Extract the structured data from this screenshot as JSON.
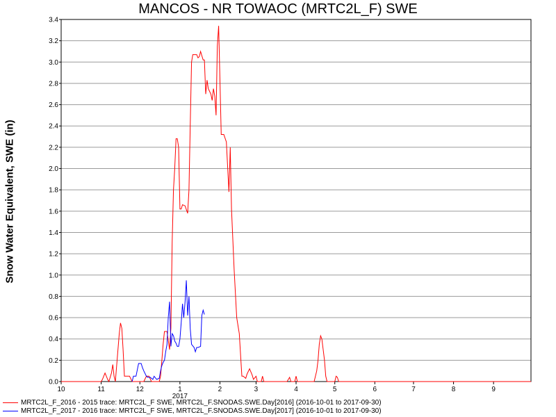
{
  "chart_data": {
    "type": "line",
    "title": "MANCOS - NR TOWAOC (MRTC2L_F) SWE",
    "ylabel": "Snow Water Equivalent, SWE (in)",
    "xlabel": "",
    "ylim": [
      0,
      3.4
    ],
    "xlim": [
      "2016-10-01",
      "2017-09-30"
    ],
    "y_ticks": [
      "0.0",
      "0.2",
      "0.4",
      "0.6",
      "0.8",
      "1.0",
      "1.2",
      "1.4",
      "1.6",
      "1.8",
      "2.0",
      "2.2",
      "2.4",
      "2.6",
      "2.8",
      "3.0",
      "3.2",
      "3.4"
    ],
    "x_ticks": [
      {
        "label": "10",
        "date": "2016-10-01"
      },
      {
        "label": "11",
        "date": "2016-11-01"
      },
      {
        "label": "12",
        "date": "2016-12-01"
      },
      {
        "label": "1",
        "date": "2017-01-01"
      },
      {
        "label": "2",
        "date": "2017-02-01"
      },
      {
        "label": "3",
        "date": "2017-03-01"
      },
      {
        "label": "4",
        "date": "2017-04-01"
      },
      {
        "label": "5",
        "date": "2017-05-01"
      },
      {
        "label": "6",
        "date": "2017-06-01"
      },
      {
        "label": "7",
        "date": "2017-07-01"
      },
      {
        "label": "8",
        "date": "2017-08-01"
      },
      {
        "label": "9",
        "date": "2017-09-01"
      }
    ],
    "year_label": "2017",
    "grid": true,
    "series": [
      {
        "name": "MRTC2L_F_2016 - 2015 trace: MRTC2L_F SWE, MRTC2L_F.SNODAS.SWE.Day[2016] (2016-10-01 to 2017-09-30)",
        "color": "#ff0000",
        "points": [
          [
            "2016-10-01",
            0
          ],
          [
            "2016-11-01",
            0
          ],
          [
            "2016-11-02",
            0.02
          ],
          [
            "2016-11-04",
            0.08
          ],
          [
            "2016-11-06",
            0.02
          ],
          [
            "2016-11-07",
            0
          ],
          [
            "2016-11-09",
            0.08
          ],
          [
            "2016-11-10",
            0.16
          ],
          [
            "2016-11-11",
            0.05
          ],
          [
            "2016-11-12",
            0
          ],
          [
            "2016-11-15",
            0.45
          ],
          [
            "2016-11-16",
            0.55
          ],
          [
            "2016-11-17",
            0.5
          ],
          [
            "2016-11-18",
            0.3
          ],
          [
            "2016-11-19",
            0.05
          ],
          [
            "2016-11-20",
            0.05
          ],
          [
            "2016-11-23",
            0.05
          ],
          [
            "2016-11-25",
            0
          ],
          [
            "2016-12-04",
            0
          ],
          [
            "2016-12-06",
            0.05
          ],
          [
            "2016-12-08",
            0.05
          ],
          [
            "2016-12-10",
            0
          ],
          [
            "2016-12-16",
            0
          ],
          [
            "2016-12-17",
            0.05
          ],
          [
            "2016-12-18",
            0.2
          ],
          [
            "2016-12-19",
            0.35
          ],
          [
            "2016-12-20",
            0.47
          ],
          [
            "2016-12-22",
            0.47
          ],
          [
            "2016-12-24",
            0.3
          ],
          [
            "2016-12-25",
            0.5
          ],
          [
            "2016-12-26",
            1.3
          ],
          [
            "2016-12-27",
            1.8
          ],
          [
            "2016-12-28",
            2.0
          ],
          [
            "2016-12-29",
            2.28
          ],
          [
            "2016-12-30",
            2.28
          ],
          [
            "2016-12-31",
            2.2
          ],
          [
            "2017-01-01",
            1.62
          ],
          [
            "2017-01-02",
            1.62
          ],
          [
            "2017-01-03",
            1.66
          ],
          [
            "2017-01-05",
            1.65
          ],
          [
            "2017-01-07",
            1.58
          ],
          [
            "2017-01-08",
            1.8
          ],
          [
            "2017-01-09",
            2.4
          ],
          [
            "2017-01-10",
            3.0
          ],
          [
            "2017-01-11",
            3.07
          ],
          [
            "2017-01-14",
            3.07
          ],
          [
            "2017-01-15",
            3.04
          ],
          [
            "2017-01-16",
            3.05
          ],
          [
            "2017-01-17",
            3.1
          ],
          [
            "2017-01-18",
            3.06
          ],
          [
            "2017-01-19",
            3.02
          ],
          [
            "2017-01-20",
            3.02
          ],
          [
            "2017-01-21",
            2.7
          ],
          [
            "2017-01-22",
            2.83
          ],
          [
            "2017-01-23",
            2.75
          ],
          [
            "2017-01-25",
            2.7
          ],
          [
            "2017-01-26",
            2.64
          ],
          [
            "2017-01-27",
            2.75
          ],
          [
            "2017-01-28",
            2.68
          ],
          [
            "2017-01-29",
            2.5
          ],
          [
            "2017-01-30",
            3.15
          ],
          [
            "2017-01-31",
            3.34
          ],
          [
            "2017-02-01",
            2.85
          ],
          [
            "2017-02-02",
            2.32
          ],
          [
            "2017-02-04",
            2.32
          ],
          [
            "2017-02-06",
            2.25
          ],
          [
            "2017-02-08",
            1.78
          ],
          [
            "2017-02-09",
            2.2
          ],
          [
            "2017-02-10",
            1.62
          ],
          [
            "2017-02-12",
            1.05
          ],
          [
            "2017-02-14",
            0.6
          ],
          [
            "2017-02-16",
            0.45
          ],
          [
            "2017-02-18",
            0.05
          ],
          [
            "2017-02-19",
            0.05
          ],
          [
            "2017-02-21",
            0.03
          ],
          [
            "2017-02-22",
            0.07
          ],
          [
            "2017-02-24",
            0.12
          ],
          [
            "2017-02-26",
            0.06
          ],
          [
            "2017-02-27",
            0.02
          ],
          [
            "2017-03-01",
            0.05
          ],
          [
            "2017-03-02",
            0
          ],
          [
            "2017-03-05",
            0
          ],
          [
            "2017-03-06",
            0.05
          ],
          [
            "2017-03-07",
            0
          ],
          [
            "2017-03-25",
            0
          ],
          [
            "2017-03-27",
            0.04
          ],
          [
            "2017-03-28",
            0
          ],
          [
            "2017-03-31",
            0
          ],
          [
            "2017-04-01",
            0.05
          ],
          [
            "2017-04-02",
            0
          ],
          [
            "2017-04-15",
            0
          ],
          [
            "2017-04-17",
            0.1
          ],
          [
            "2017-04-18",
            0.2
          ],
          [
            "2017-04-19",
            0.35
          ],
          [
            "2017-04-20",
            0.43
          ],
          [
            "2017-04-21",
            0.4
          ],
          [
            "2017-04-22",
            0.3
          ],
          [
            "2017-04-23",
            0.2
          ],
          [
            "2017-04-24",
            0.05
          ],
          [
            "2017-04-25",
            0
          ],
          [
            "2017-05-01",
            0
          ],
          [
            "2017-05-02",
            0.05
          ],
          [
            "2017-05-03",
            0.04
          ],
          [
            "2017-05-04",
            0
          ],
          [
            "2017-09-30",
            0
          ]
        ]
      },
      {
        "name": "MRTC2L_F_2017 - 2016 trace: MRTC2L_F SWE, MRTC2L_F.SNODAS.SWE.Day[2017] (2016-10-01 to 2017-09-30)",
        "color": "#0000ff",
        "points": [
          [
            "2016-11-25",
            0
          ],
          [
            "2016-11-26",
            0.05
          ],
          [
            "2016-11-28",
            0.05
          ],
          [
            "2016-11-30",
            0.17
          ],
          [
            "2016-12-02",
            0.17
          ],
          [
            "2016-12-03",
            0.13
          ],
          [
            "2016-12-04",
            0.1
          ],
          [
            "2016-12-06",
            0.05
          ],
          [
            "2016-12-07",
            0.04
          ],
          [
            "2016-12-09",
            0.04
          ],
          [
            "2016-12-11",
            0.02
          ],
          [
            "2016-12-12",
            0.05
          ],
          [
            "2016-12-14",
            0.02
          ],
          [
            "2016-12-16",
            0.03
          ],
          [
            "2016-12-17",
            0.1
          ],
          [
            "2016-12-18",
            0.15
          ],
          [
            "2016-12-19",
            0.18
          ],
          [
            "2016-12-20",
            0.2
          ],
          [
            "2016-12-21",
            0.28
          ],
          [
            "2016-12-22",
            0.35
          ],
          [
            "2016-12-23",
            0.6
          ],
          [
            "2016-12-24",
            0.75
          ],
          [
            "2016-12-25",
            0.33
          ],
          [
            "2016-12-26",
            0.45
          ],
          [
            "2016-12-27",
            0.43
          ],
          [
            "2016-12-28",
            0.38
          ],
          [
            "2016-12-29",
            0.36
          ],
          [
            "2016-12-30",
            0.33
          ],
          [
            "2016-12-31",
            0.33
          ],
          [
            "2017-01-01",
            0.4
          ],
          [
            "2017-01-02",
            0.55
          ],
          [
            "2017-01-03",
            0.73
          ],
          [
            "2017-01-04",
            0.6
          ],
          [
            "2017-01-05",
            0.75
          ],
          [
            "2017-01-06",
            0.95
          ],
          [
            "2017-01-07",
            0.62
          ],
          [
            "2017-01-08",
            0.8
          ],
          [
            "2017-01-09",
            0.5
          ],
          [
            "2017-01-10",
            0.35
          ],
          [
            "2017-01-12",
            0.32
          ],
          [
            "2017-01-13",
            0.28
          ],
          [
            "2017-01-14",
            0.32
          ],
          [
            "2017-01-15",
            0.32
          ],
          [
            "2017-01-17",
            0.33
          ],
          [
            "2017-01-18",
            0.62
          ],
          [
            "2017-01-19",
            0.67
          ],
          [
            "2017-01-20",
            0.63
          ]
        ]
      }
    ]
  }
}
